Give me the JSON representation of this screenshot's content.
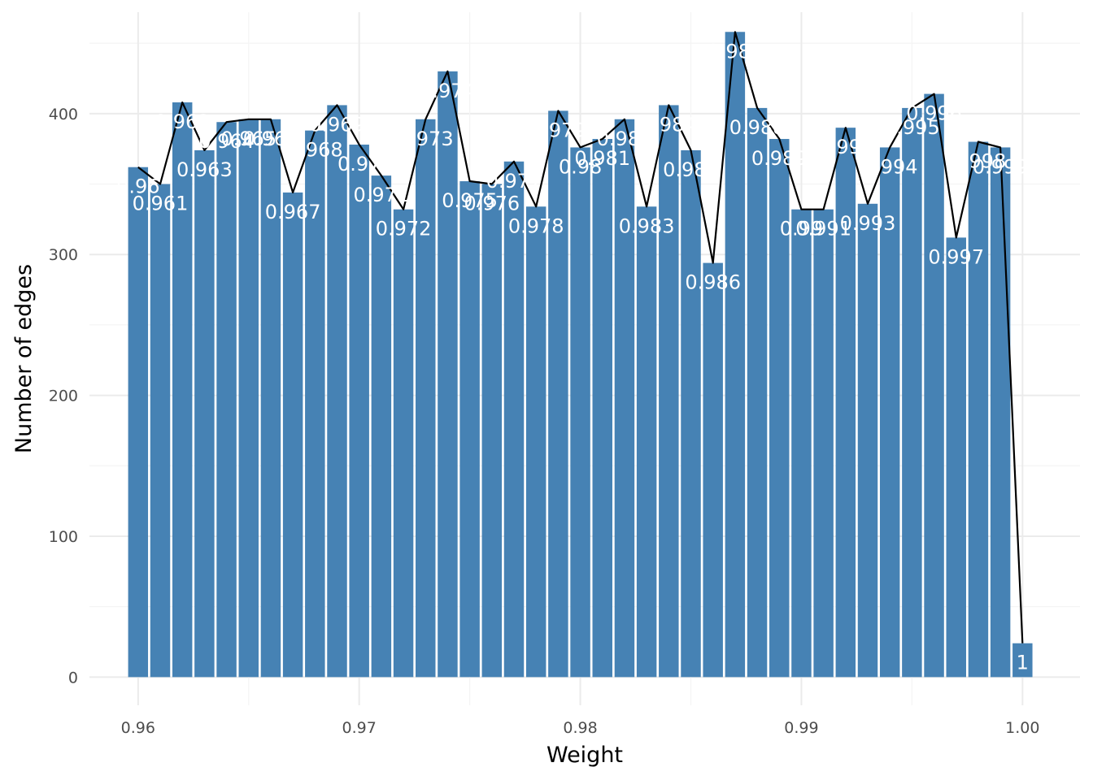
{
  "chart_data": {
    "type": "bar",
    "xlabel": "Weight",
    "ylabel": "Number of edges",
    "xlim": [
      0.9578,
      1.0026
    ],
    "ylim": [
      -20,
      472
    ],
    "x_ticks": [
      0.96,
      0.97,
      0.98,
      0.99,
      1.0
    ],
    "x_tick_labels": [
      "0.96",
      "0.97",
      "0.98",
      "0.99",
      "1.00"
    ],
    "y_ticks": [
      0,
      100,
      200,
      300,
      400
    ],
    "y_tick_labels": [
      "0",
      "100",
      "200",
      "300",
      "400"
    ],
    "grid": true,
    "colors": {
      "bar": "#4682b4",
      "line": "#000000",
      "label": "#ffffff"
    },
    "x": [
      0.96,
      0.961,
      0.962,
      0.963,
      0.964,
      0.965,
      0.966,
      0.967,
      0.968,
      0.969,
      0.97,
      0.971,
      0.972,
      0.973,
      0.974,
      0.975,
      0.976,
      0.977,
      0.978,
      0.979,
      0.98,
      0.981,
      0.982,
      0.983,
      0.984,
      0.985,
      0.986,
      0.987,
      0.988,
      0.989,
      0.99,
      0.991,
      0.992,
      0.993,
      0.994,
      0.995,
      0.996,
      0.997,
      0.998,
      0.999,
      1.0
    ],
    "values": [
      362,
      350,
      408,
      374,
      394,
      396,
      396,
      344,
      388,
      406,
      378,
      356,
      332,
      396,
      430,
      352,
      350,
      366,
      334,
      402,
      376,
      382,
      396,
      334,
      406,
      374,
      294,
      458,
      404,
      382,
      332,
      332,
      390,
      336,
      376,
      404,
      414,
      312,
      380,
      376,
      24
    ],
    "labels": [
      "0.96",
      "0.961",
      "0.962",
      "0.963",
      "0.964",
      "0.965",
      "0.966",
      "0.967",
      "0.968",
      "0.969",
      "0.97",
      "0.971",
      "0.972",
      "0.973",
      "0.974",
      "0.975",
      "0.976",
      "0.977",
      "0.978",
      "0.979",
      "0.98",
      "0.981",
      "0.982",
      "0.983",
      "0.984",
      "0.985",
      "0.986",
      "0.987",
      "0.988",
      "0.989",
      "0.99",
      "0.991",
      "0.992",
      "0.993",
      "0.994",
      "0.995",
      "0.996",
      "0.997",
      "0.998",
      "0.999",
      "1"
    ]
  }
}
